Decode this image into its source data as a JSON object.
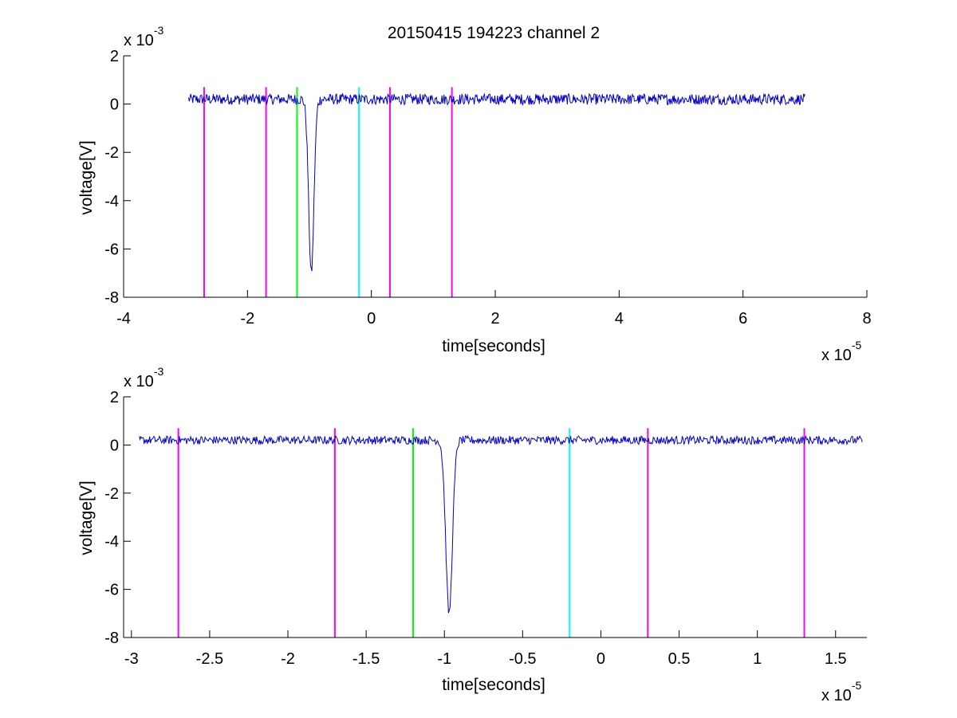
{
  "title": "20150415 194223 channel 2",
  "colors": {
    "signal": "#0000cc",
    "magenta": "#ff00ff",
    "green": "#00ff00",
    "cyan": "#00ffff",
    "axis": "#000000"
  },
  "chart_data": [
    {
      "type": "line",
      "xlabel": "time[seconds]",
      "ylabel": "voltage[V]",
      "x_multiplier": {
        "base": "x 10",
        "exponent": "-5"
      },
      "y_multiplier": {
        "base": "x 10",
        "exponent": "-3"
      },
      "xlim": [
        -4,
        8
      ],
      "ylim": [
        -8,
        2
      ],
      "xticks": [
        -4,
        -2,
        0,
        2,
        4,
        6,
        8
      ],
      "xtick_labels": [
        "-4",
        "-2",
        "0",
        "2",
        "4",
        "6",
        "8"
      ],
      "yticks": [
        2,
        0,
        -2,
        -4,
        -6,
        -8
      ],
      "ytick_labels": [
        "2",
        "0",
        "-2",
        "-4",
        "-6",
        "-8"
      ],
      "grid": false,
      "signal": {
        "x_range": [
          -2.95,
          7.0
        ],
        "baseline": 0.2,
        "noise": 0.45,
        "pulse": {
          "center": -0.97,
          "width": 0.06,
          "min": -7.2
        }
      },
      "markers": [
        {
          "x": -2.7,
          "color": "magenta",
          "top": 0.7
        },
        {
          "x": -1.7,
          "color": "magenta",
          "top": 0.7
        },
        {
          "x": -1.2,
          "color": "green",
          "top": 0.7
        },
        {
          "x": -0.2,
          "color": "cyan",
          "top": 0.7
        },
        {
          "x": 0.3,
          "color": "magenta",
          "top": 0.7
        },
        {
          "x": 1.3,
          "color": "magenta",
          "top": 0.7
        }
      ]
    },
    {
      "type": "line",
      "xlabel": "time[seconds]",
      "ylabel": "voltage[V]",
      "x_multiplier": {
        "base": "x 10",
        "exponent": "-5"
      },
      "y_multiplier": {
        "base": "x 10",
        "exponent": "-3"
      },
      "xlim": [
        -3.05,
        1.7
      ],
      "ylim": [
        -8,
        2
      ],
      "xticks": [
        -3,
        -2.5,
        -2,
        -1.5,
        -1,
        -0.5,
        0,
        0.5,
        1,
        1.5
      ],
      "xtick_labels": [
        "-3",
        "-2.5",
        "-2",
        "-1.5",
        "-1",
        "-0.5",
        "0",
        "0.5",
        "1",
        "1.5"
      ],
      "yticks": [
        2,
        0,
        -2,
        -4,
        -6,
        -8
      ],
      "ytick_labels": [
        "2",
        "0",
        "-2",
        "-4",
        "-6",
        "-8"
      ],
      "grid": false,
      "signal": {
        "x_range": [
          -2.95,
          1.67
        ],
        "baseline": 0.2,
        "noise": 0.35,
        "pulse": {
          "center": -0.97,
          "width": 0.03,
          "min": -7.2
        }
      },
      "markers": [
        {
          "x": -2.7,
          "color": "magenta",
          "top": 0.7
        },
        {
          "x": -1.7,
          "color": "magenta",
          "top": 0.7
        },
        {
          "x": -1.2,
          "color": "green",
          "top": 0.7
        },
        {
          "x": -0.2,
          "color": "cyan",
          "top": 0.7
        },
        {
          "x": 0.3,
          "color": "magenta",
          "top": 0.7
        },
        {
          "x": 1.3,
          "color": "magenta",
          "top": 0.7
        }
      ]
    }
  ]
}
